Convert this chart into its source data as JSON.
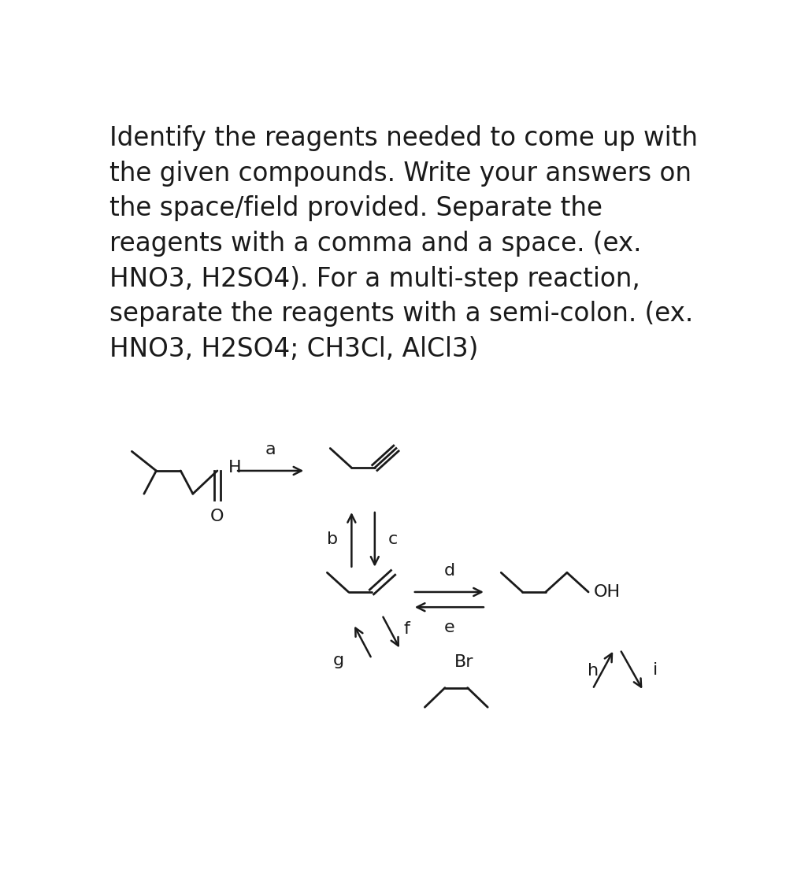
{
  "bg_color": "#ffffff",
  "text_color": "#1a1a1a",
  "line_color": "#1a1a1a",
  "title_fontsize": 23.5,
  "label_fontsize": 15,
  "title_lines": [
    "Identify the reagents needed to come up with",
    "the given compounds. Write your answers on",
    "the space/field provided. Separate the",
    "reagents with a comma and a space. (ex.",
    "HNO3, H2SO4). For a multi-step reaction,",
    "separate the reagents with a semi-colon. (ex.",
    "HNO3, H2SO4; CH3Cl, AlCl3)"
  ]
}
